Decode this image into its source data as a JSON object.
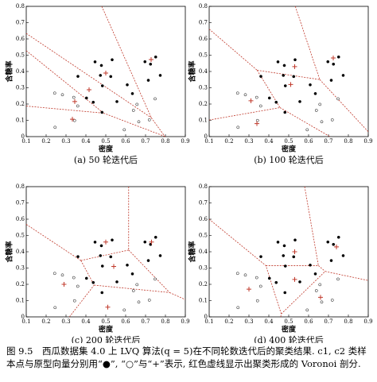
{
  "chart_data": [
    {
      "type": "scatter",
      "subtitle": "(a) 50 轮迭代后",
      "xlabel": "密度",
      "ylabel": "含糖率",
      "xlim": [
        0.1,
        0.9
      ],
      "xticks": [
        0.1,
        0.2,
        0.3,
        0.4,
        0.5,
        0.6,
        0.7,
        0.8,
        0.9
      ],
      "ylim": [
        0,
        0.8
      ],
      "yticks": [
        0,
        0.1,
        0.2,
        0.3,
        0.4,
        0.5,
        0.6,
        0.7,
        0.8
      ],
      "voronoi_color": "#c0392b",
      "series": [
        {
          "marker": "filled",
          "color": "#000000",
          "x": [
            0.697,
            0.774,
            0.634,
            0.608,
            0.556,
            0.403,
            0.481,
            0.437,
            0.36,
            0.714,
            0.483,
            0.478,
            0.525,
            0.751,
            0.532,
            0.473,
            0.725,
            0.446
          ],
          "y": [
            0.46,
            0.376,
            0.264,
            0.318,
            0.215,
            0.237,
            0.149,
            0.211,
            0.37,
            0.346,
            0.312,
            0.437,
            0.369,
            0.489,
            0.472,
            0.376,
            0.445,
            0.459
          ]
        },
        {
          "marker": "open",
          "color": "#000000",
          "x": [
            0.666,
            0.243,
            0.245,
            0.343,
            0.639,
            0.657,
            0.593,
            0.719,
            0.359,
            0.339,
            0.282,
            0.748
          ],
          "y": [
            0.091,
            0.267,
            0.057,
            0.099,
            0.161,
            0.198,
            0.042,
            0.103,
            0.188,
            0.241,
            0.257,
            0.232
          ]
        },
        {
          "marker": "plus",
          "color": "#c0392b",
          "x": [
            0.728,
            0.5,
            0.416,
            0.344,
            0.332
          ],
          "y": [
            0.473,
            0.39,
            0.288,
            0.215,
            0.107
          ]
        }
      ]
    },
    {
      "type": "scatter",
      "subtitle": "(b) 100 轮迭代后",
      "xlabel": "密度",
      "ylabel": "含糖率",
      "xlim": [
        0.1,
        0.9
      ],
      "xticks": [
        0.1,
        0.2,
        0.3,
        0.4,
        0.5,
        0.6,
        0.7,
        0.8,
        0.9
      ],
      "ylim": [
        0,
        0.8
      ],
      "yticks": [
        0,
        0.1,
        0.2,
        0.3,
        0.4,
        0.5,
        0.6,
        0.7,
        0.8
      ],
      "voronoi_color": "#c0392b",
      "series": [
        {
          "marker": "filled",
          "color": "#000000",
          "x": [
            0.697,
            0.774,
            0.634,
            0.608,
            0.556,
            0.403,
            0.481,
            0.437,
            0.36,
            0.714,
            0.483,
            0.478,
            0.525,
            0.751,
            0.532,
            0.473,
            0.725,
            0.446
          ],
          "y": [
            0.46,
            0.376,
            0.264,
            0.318,
            0.215,
            0.237,
            0.149,
            0.211,
            0.37,
            0.346,
            0.312,
            0.437,
            0.369,
            0.489,
            0.472,
            0.376,
            0.445,
            0.459
          ]
        },
        {
          "marker": "open",
          "color": "#000000",
          "x": [
            0.666,
            0.243,
            0.245,
            0.343,
            0.639,
            0.657,
            0.593,
            0.719,
            0.359,
            0.339,
            0.282,
            0.748
          ],
          "y": [
            0.091,
            0.267,
            0.057,
            0.099,
            0.161,
            0.198,
            0.042,
            0.103,
            0.188,
            0.241,
            0.257,
            0.232
          ]
        },
        {
          "marker": "plus",
          "color": "#c0392b",
          "x": [
            0.724,
            0.53,
            0.51,
            0.31,
            0.34
          ],
          "y": [
            0.483,
            0.43,
            0.32,
            0.22,
            0.08
          ]
        }
      ]
    },
    {
      "type": "scatter",
      "subtitle": "(c) 200 轮迭代后",
      "xlabel": "密度",
      "ylabel": "含糖率",
      "xlim": [
        0.1,
        0.9
      ],
      "xticks": [
        0.1,
        0.2,
        0.3,
        0.4,
        0.5,
        0.6,
        0.7,
        0.8,
        0.9
      ],
      "ylim": [
        0,
        0.8
      ],
      "yticks": [
        0,
        0.1,
        0.2,
        0.3,
        0.4,
        0.5,
        0.6,
        0.7,
        0.8
      ],
      "voronoi_color": "#c0392b",
      "series": [
        {
          "marker": "filled",
          "color": "#000000",
          "x": [
            0.697,
            0.774,
            0.634,
            0.608,
            0.556,
            0.403,
            0.481,
            0.437,
            0.36,
            0.714,
            0.483,
            0.478,
            0.525,
            0.751,
            0.532,
            0.473,
            0.725,
            0.446
          ],
          "y": [
            0.46,
            0.376,
            0.264,
            0.318,
            0.215,
            0.237,
            0.149,
            0.211,
            0.37,
            0.346,
            0.312,
            0.437,
            0.369,
            0.489,
            0.472,
            0.376,
            0.445,
            0.459
          ]
        },
        {
          "marker": "open",
          "color": "#000000",
          "x": [
            0.666,
            0.243,
            0.245,
            0.343,
            0.639,
            0.657,
            0.593,
            0.719,
            0.359,
            0.339,
            0.282,
            0.748
          ],
          "y": [
            0.091,
            0.267,
            0.057,
            0.099,
            0.161,
            0.198,
            0.042,
            0.103,
            0.188,
            0.241,
            0.257,
            0.232
          ]
        },
        {
          "marker": "plus",
          "color": "#c0392b",
          "x": [
            0.73,
            0.5,
            0.54,
            0.29,
            0.51
          ],
          "y": [
            0.46,
            0.46,
            0.31,
            0.2,
            0.06
          ]
        }
      ]
    },
    {
      "type": "scatter",
      "subtitle": "(d) 400 轮迭代后",
      "xlabel": "密度",
      "ylabel": "含糖率",
      "xlim": [
        0.1,
        0.9
      ],
      "xticks": [
        0.1,
        0.2,
        0.3,
        0.4,
        0.5,
        0.6,
        0.7,
        0.8,
        0.9
      ],
      "ylim": [
        0,
        0.8
      ],
      "yticks": [
        0,
        0.1,
        0.2,
        0.3,
        0.4,
        0.5,
        0.6,
        0.7,
        0.8
      ],
      "voronoi_color": "#c0392b",
      "series": [
        {
          "marker": "filled",
          "color": "#000000",
          "x": [
            0.697,
            0.774,
            0.634,
            0.608,
            0.556,
            0.403,
            0.481,
            0.437,
            0.36,
            0.714,
            0.483,
            0.478,
            0.525,
            0.751,
            0.532,
            0.473,
            0.725,
            0.446
          ],
          "y": [
            0.46,
            0.376,
            0.264,
            0.318,
            0.215,
            0.237,
            0.149,
            0.211,
            0.37,
            0.346,
            0.312,
            0.437,
            0.369,
            0.489,
            0.472,
            0.376,
            0.445,
            0.459
          ]
        },
        {
          "marker": "open",
          "color": "#000000",
          "x": [
            0.666,
            0.243,
            0.245,
            0.343,
            0.639,
            0.657,
            0.593,
            0.719,
            0.359,
            0.339,
            0.282,
            0.748
          ],
          "y": [
            0.091,
            0.267,
            0.057,
            0.099,
            0.161,
            0.198,
            0.042,
            0.103,
            0.188,
            0.241,
            0.257,
            0.232
          ]
        },
        {
          "marker": "plus",
          "color": "#c0392b",
          "x": [
            0.74,
            0.53,
            0.3,
            0.53,
            0.66
          ],
          "y": [
            0.43,
            0.4,
            0.17,
            0.23,
            0.12
          ]
        }
      ]
    }
  ],
  "caption": "图 9.5　西瓜数据集 4.0 上 LVQ 算法(q = 5)在不同轮数迭代后的聚类结果. c1, c2 类样本点与原型向量分别用“●”, “○”与“+”表示, 红色虚线显示出聚类形成的 Voronoi 剖分."
}
